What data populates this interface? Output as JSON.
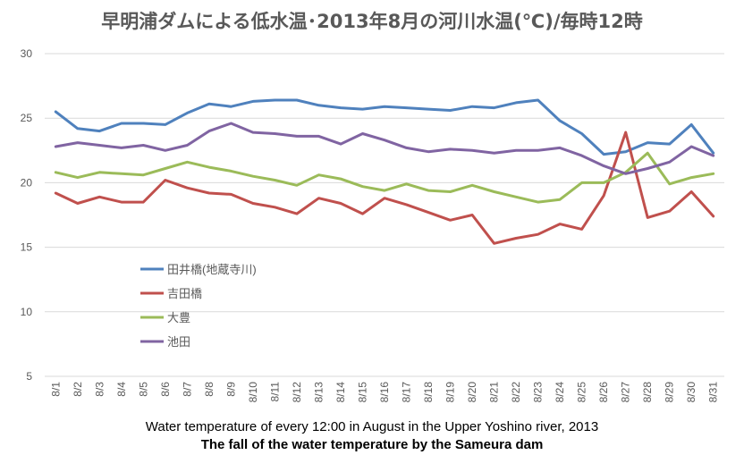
{
  "chart_data": {
    "type": "line",
    "title": "早明浦ダムによる低水温･2013年8月の河川水温(℃)/毎時12時",
    "captions": [
      "Water temperature of every 12:00 in August in the Upper Yoshino river, 2013",
      "The fall of the water temperature by the Sameura dam"
    ],
    "xlabel": "",
    "ylabel": "",
    "ylim": [
      5,
      30
    ],
    "yticks": [
      5,
      10,
      15,
      20,
      25,
      30
    ],
    "grid": true,
    "legend_position": "left-middle",
    "categories": [
      "8/1",
      "8/2",
      "8/3",
      "8/4",
      "8/5",
      "8/6",
      "8/7",
      "8/8",
      "8/9",
      "8/10",
      "8/11",
      "8/12",
      "8/13",
      "8/14",
      "8/15",
      "8/16",
      "8/17",
      "8/18",
      "8/19",
      "8/20",
      "8/21",
      "8/22",
      "8/23",
      "8/24",
      "8/25",
      "8/26",
      "8/27",
      "8/28",
      "8/29",
      "8/30",
      "8/31"
    ],
    "series": [
      {
        "name": "田井橋(地蔵寺川)",
        "color": "#4F81BD",
        "values": [
          25.5,
          24.2,
          24.0,
          24.6,
          24.6,
          24.5,
          25.4,
          26.1,
          25.9,
          26.3,
          26.4,
          26.4,
          26.0,
          25.8,
          25.7,
          25.9,
          25.8,
          25.7,
          25.6,
          25.9,
          25.8,
          26.2,
          26.4,
          24.8,
          23.8,
          22.2,
          22.4,
          23.1,
          23.0,
          24.5,
          22.3
        ]
      },
      {
        "name": "吉田橋",
        "color": "#C0504D",
        "values": [
          19.2,
          18.4,
          18.9,
          18.5,
          18.5,
          20.2,
          19.6,
          19.2,
          19.1,
          18.4,
          18.1,
          17.6,
          18.8,
          18.4,
          17.6,
          18.8,
          18.3,
          17.7,
          17.1,
          17.5,
          15.3,
          15.7,
          16.0,
          16.8,
          16.4,
          19.0,
          23.9,
          17.3,
          17.8,
          19.3,
          17.4
        ]
      },
      {
        "name": "大豊",
        "color": "#9BBB59",
        "values": [
          20.8,
          20.4,
          20.8,
          20.7,
          20.6,
          21.1,
          21.6,
          21.2,
          20.9,
          20.5,
          20.2,
          19.8,
          20.6,
          20.3,
          19.7,
          19.4,
          19.9,
          19.4,
          19.3,
          19.8,
          19.3,
          18.9,
          18.5,
          18.7,
          20.0,
          20.0,
          20.8,
          22.3,
          19.9,
          20.4,
          20.7
        ]
      },
      {
        "name": "池田",
        "color": "#8064A2",
        "values": [
          22.8,
          23.1,
          22.9,
          22.7,
          22.9,
          22.5,
          22.9,
          24.0,
          24.6,
          23.9,
          23.8,
          23.6,
          23.6,
          23.0,
          23.8,
          23.3,
          22.7,
          22.4,
          22.6,
          22.5,
          22.3,
          22.5,
          22.5,
          22.7,
          22.1,
          21.3,
          20.7,
          21.1,
          21.6,
          22.8,
          22.1
        ]
      }
    ]
  }
}
